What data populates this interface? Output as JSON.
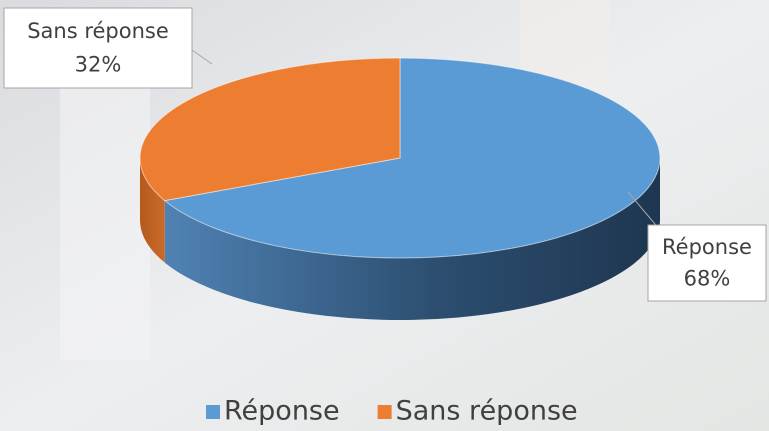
{
  "chart_data": {
    "type": "pie3d",
    "categories": [
      "Réponse",
      "Sans réponse"
    ],
    "values": [
      68,
      32
    ],
    "value_labels": [
      "68%",
      "32%"
    ],
    "colors": [
      "#5b9bd5",
      "#ed7d31"
    ],
    "legend": "bottom"
  }
}
